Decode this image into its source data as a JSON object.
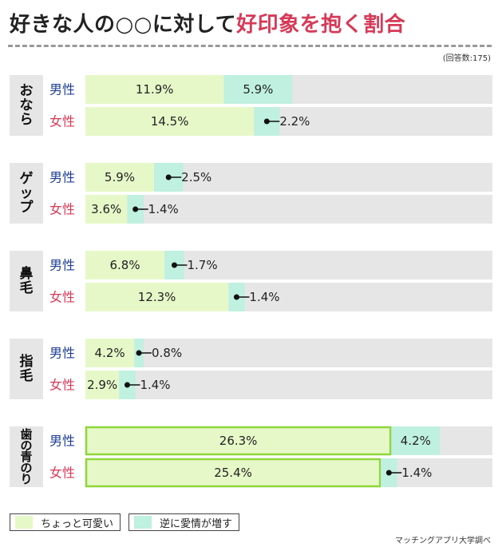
{
  "title": {
    "prefix": "好きな人の○○に対して",
    "accent": "好印象を抱く割合"
  },
  "note": "(回答数:175)",
  "source": "マッチングアプリ大学調べ",
  "colors": {
    "cute": "#e6f8c8",
    "love": "#bff0e0",
    "track": "#e6e6e6",
    "male": "#1f3f94",
    "female": "#d63a57",
    "highlight_border": "#8fd63a"
  },
  "legend": [
    {
      "key": "cute",
      "label": "ちょっと可愛い"
    },
    {
      "key": "love",
      "label": "逆に愛情が増す"
    }
  ],
  "chart_data": {
    "type": "bar",
    "orientation": "horizontal",
    "stacked": true,
    "xlim": [
      0,
      35
    ],
    "series": [
      {
        "name": "ちょっと可愛い",
        "key": "cute"
      },
      {
        "name": "逆に愛情が増す",
        "key": "love"
      }
    ],
    "groups": [
      {
        "category": "おなら",
        "highlight": false,
        "rows": [
          {
            "gender": "男性",
            "gkey": "male",
            "cute": 11.9,
            "love": 5.9,
            "cute_label": "11.9%",
            "love_label": "5.9%"
          },
          {
            "gender": "女性",
            "gkey": "female",
            "cute": 14.5,
            "love": 2.2,
            "cute_label": "14.5%",
            "love_label": "2.2%"
          }
        ]
      },
      {
        "category": "ゲップ",
        "highlight": false,
        "rows": [
          {
            "gender": "男性",
            "gkey": "male",
            "cute": 5.9,
            "love": 2.5,
            "cute_label": "5.9%",
            "love_label": "2.5%"
          },
          {
            "gender": "女性",
            "gkey": "female",
            "cute": 3.6,
            "love": 1.4,
            "cute_label": "3.6%",
            "love_label": "1.4%"
          }
        ]
      },
      {
        "category": "鼻毛",
        "highlight": false,
        "rows": [
          {
            "gender": "男性",
            "gkey": "male",
            "cute": 6.8,
            "love": 1.7,
            "cute_label": "6.8%",
            "love_label": "1.7%"
          },
          {
            "gender": "女性",
            "gkey": "female",
            "cute": 12.3,
            "love": 1.4,
            "cute_label": "12.3%",
            "love_label": "1.4%"
          }
        ]
      },
      {
        "category": "指毛",
        "highlight": false,
        "rows": [
          {
            "gender": "男性",
            "gkey": "male",
            "cute": 4.2,
            "love": 0.8,
            "cute_label": "4.2%",
            "love_label": "0.8%"
          },
          {
            "gender": "女性",
            "gkey": "female",
            "cute": 2.9,
            "love": 1.4,
            "cute_label": "2.9%",
            "love_label": "1.4%"
          }
        ]
      },
      {
        "category": "歯の青のり",
        "highlight": true,
        "rows": [
          {
            "gender": "男性",
            "gkey": "male",
            "cute": 26.3,
            "love": 4.2,
            "cute_label": "26.3%",
            "love_label": "4.2%"
          },
          {
            "gender": "女性",
            "gkey": "female",
            "cute": 25.4,
            "love": 1.4,
            "cute_label": "25.4%",
            "love_label": "1.4%"
          }
        ]
      }
    ]
  }
}
